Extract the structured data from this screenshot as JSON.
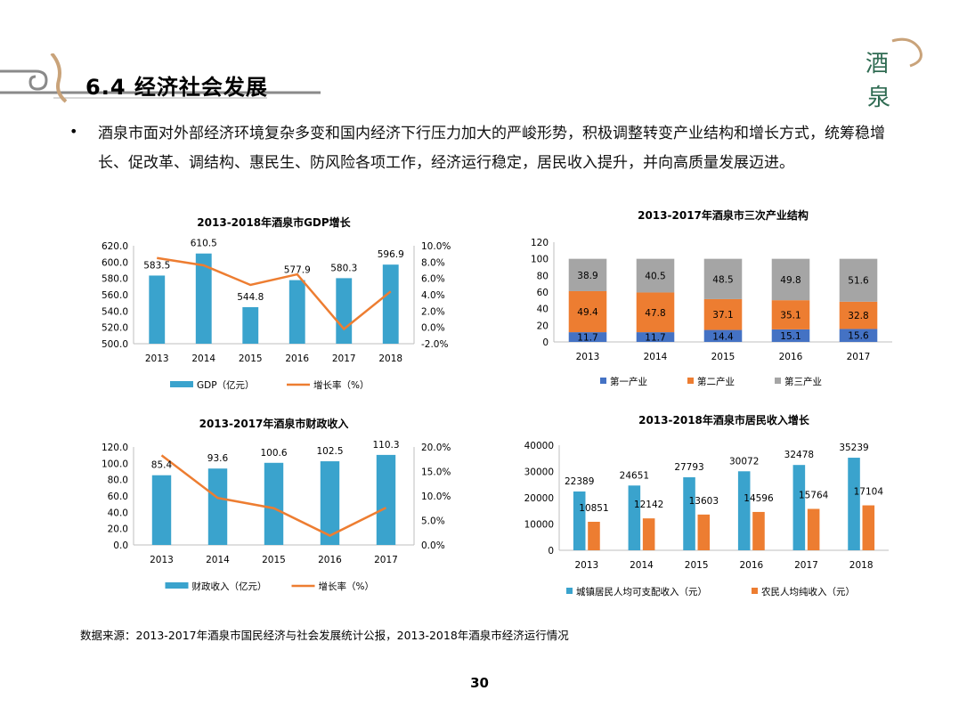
{
  "header": {
    "title": "6.4 经济社会发展"
  },
  "logo": {
    "glyph1": "酒",
    "glyph2": "泉"
  },
  "intro": {
    "text": "酒泉市面对外部经济环境复杂多变和国内经济下行压力加大的严峻形势，积极调整转变产业结构和增长方式，统筹稳增长、促改革、调结构、惠民生、防风险各项工作，经济运行稳定，居民收入提升，并向高质量发展迈进。"
  },
  "colors": {
    "blue": "#3aa3cd",
    "orange": "#ed7d31",
    "gray": "#a5a5a5",
    "indigo": "#4472c4"
  },
  "chart_data": [
    {
      "id": "gdp",
      "type": "bar",
      "title": "2013-2018年酒泉市GDP增长",
      "categories": [
        "2013",
        "2014",
        "2015",
        "2016",
        "2017",
        "2018"
      ],
      "series": [
        {
          "name": "GDP（亿元）",
          "type": "bar",
          "values": [
            583.5,
            610.5,
            544.8,
            577.9,
            580.3,
            596.9
          ],
          "labels": [
            "583.5",
            "610.5",
            "544.8",
            "577.9",
            "580.3",
            "596.9"
          ]
        },
        {
          "name": "增长率（%）",
          "type": "line",
          "axis": "right",
          "values": [
            8.5,
            7.6,
            5.2,
            6.5,
            -0.2,
            4.4
          ]
        }
      ],
      "ylim": [
        500,
        620
      ],
      "y_ticks": [
        "500.0",
        "520.0",
        "540.0",
        "560.0",
        "580.0",
        "600.0",
        "620.0"
      ],
      "y2lim": [
        -2,
        10
      ],
      "y2_ticks": [
        "-2.0%",
        "0.0%",
        "2.0%",
        "4.0%",
        "6.0%",
        "8.0%",
        "10.0%"
      ],
      "legend": "bottom"
    },
    {
      "id": "industry",
      "type": "bar",
      "stacked": true,
      "title": "2013-2017年酒泉市三次产业结构",
      "categories": [
        "2013",
        "2014",
        "2015",
        "2016",
        "2017"
      ],
      "series": [
        {
          "name": "第一产业",
          "values": [
            11.7,
            11.7,
            14.4,
            15.1,
            15.6
          ],
          "labels": [
            "11.7",
            "11.7",
            "14.4",
            "15.1",
            "15.6"
          ]
        },
        {
          "name": "第二产业",
          "values": [
            49.4,
            47.8,
            37.1,
            35.1,
            32.8
          ],
          "labels": [
            "49.4",
            "47.8",
            "37.1",
            "35.1",
            "32.8"
          ]
        },
        {
          "name": "第三产业",
          "values": [
            38.9,
            40.5,
            48.5,
            49.8,
            51.6
          ],
          "labels": [
            "38.9",
            "40.5",
            "48.5",
            "49.8",
            "51.6"
          ]
        }
      ],
      "ylim": [
        0,
        120
      ],
      "y_ticks": [
        "0",
        "20",
        "40",
        "60",
        "80",
        "100",
        "120"
      ],
      "legend": "bottom"
    },
    {
      "id": "fiscal",
      "type": "bar",
      "title": "2013-2017年酒泉市财政收入",
      "categories": [
        "2013",
        "2014",
        "2015",
        "2016",
        "2017"
      ],
      "series": [
        {
          "name": "财政收入（亿元）",
          "type": "bar",
          "values": [
            85.4,
            93.6,
            100.6,
            102.5,
            110.3
          ],
          "labels": [
            "85.4",
            "93.6",
            "100.6",
            "102.5",
            "110.3"
          ]
        },
        {
          "name": "增长率（%）",
          "type": "line",
          "axis": "right",
          "values": [
            18.3,
            9.6,
            7.5,
            1.9,
            7.6
          ]
        }
      ],
      "ylim": [
        0,
        120
      ],
      "y_ticks": [
        "0.0",
        "20.0",
        "40.0",
        "60.0",
        "80.0",
        "100.0",
        "120.0"
      ],
      "y2lim": [
        0,
        20
      ],
      "y2_ticks": [
        "0.0%",
        "5.0%",
        "10.0%",
        "15.0%",
        "20.0%"
      ],
      "legend": "bottom"
    },
    {
      "id": "income",
      "type": "bar",
      "title": "2013-2018年酒泉市居民收入增长",
      "categories": [
        "2013",
        "2014",
        "2015",
        "2016",
        "2017",
        "2018"
      ],
      "series": [
        {
          "name": "城镇居民人均可支配收入（元）",
          "values": [
            22389,
            24651,
            27793,
            30072,
            32478,
            35239
          ],
          "labels": [
            "22389",
            "24651",
            "27793",
            "30072",
            "32478",
            "35239"
          ]
        },
        {
          "name": "农民人均纯收入（元）",
          "values": [
            10851,
            12142,
            13603,
            14596,
            15764,
            17104
          ],
          "labels": [
            "10851",
            "12142",
            "13603",
            "14596",
            "15764",
            "17104"
          ]
        }
      ],
      "ylim": [
        0,
        40000
      ],
      "y_ticks": [
        "0",
        "10000",
        "20000",
        "30000",
        "40000"
      ],
      "legend": "bottom"
    }
  ],
  "source": {
    "text": "数据来源：2013-2017年酒泉市国民经济与社会发展统计公报，2013-2018年酒泉市经济运行情况"
  },
  "page": {
    "number": "30"
  }
}
